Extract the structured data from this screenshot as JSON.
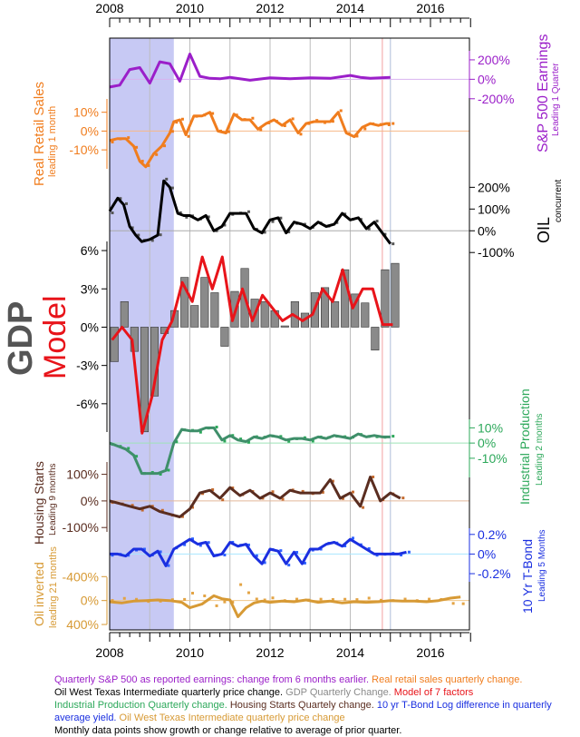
{
  "chart_data": {
    "type": "line",
    "x_range": [
      2008,
      2017
    ],
    "x_ticks": [
      "2008",
      "2010",
      "2012",
      "2014",
      "2016"
    ],
    "recession": [
      2008.0,
      2009.6
    ],
    "vlines": [
      2014.8,
      2015.0
    ],
    "colors": {
      "sp": "#9b1fc9",
      "rs": "#f07d1e",
      "oil": "#000000",
      "gdp_bar": "#8a8a8a",
      "model": "#e8141a",
      "ip": "#2ca85a",
      "hs": "#5a2d20",
      "tb": "#1a2fe0",
      "oi": "#d79a35",
      "band": "#c7c9f4"
    },
    "panels": {
      "sp": {
        "label": "S&P 500 Earnings",
        "sublabel": "Leading 1 Quarter",
        "ticks": [
          "200%",
          "0%",
          "-200%"
        ],
        "range": [
          -230,
          330
        ],
        "x": [
          2008.0,
          2008.25,
          2008.5,
          2008.75,
          2009.0,
          2009.25,
          2009.5,
          2009.75,
          2010.0,
          2010.25,
          2010.5,
          2010.75,
          2011.0,
          2011.5,
          2012.0,
          2012.5,
          2013.0,
          2013.5,
          2014.0,
          2014.25,
          2014.5,
          2014.75,
          2015.0
        ],
        "values": [
          -80,
          -60,
          100,
          120,
          -40,
          180,
          160,
          -20,
          260,
          30,
          10,
          5,
          20,
          -10,
          15,
          5,
          15,
          10,
          40,
          20,
          10,
          15,
          20
        ]
      },
      "rs": {
        "label": "Real Retail Sales",
        "sublabel": "leading 1 month",
        "ticks": [
          "10%",
          "0%",
          "-10%"
        ],
        "range": [
          -22,
          19
        ],
        "x": [
          2008.0,
          2008.2,
          2008.4,
          2008.6,
          2008.75,
          2008.9,
          2009.1,
          2009.3,
          2009.5,
          2009.6,
          2009.75,
          2009.9,
          2010.1,
          2010.3,
          2010.5,
          2010.7,
          2010.9,
          2011.1,
          2011.3,
          2011.5,
          2011.7,
          2011.9,
          2012.1,
          2012.3,
          2012.5,
          2012.7,
          2012.9,
          2013.1,
          2013.3,
          2013.5,
          2013.7,
          2013.9,
          2014.1,
          2014.3,
          2014.5,
          2014.7,
          2014.9,
          2015.0
        ],
        "values": [
          -5,
          -4,
          -4,
          -8,
          -16,
          -19,
          -12,
          -8,
          -1,
          5,
          6,
          -2,
          8,
          8,
          10,
          0,
          -1,
          9,
          6,
          6,
          1,
          4,
          6,
          3,
          6,
          -1,
          4,
          5,
          5,
          5,
          10,
          -1,
          -3,
          2,
          4,
          3,
          4,
          4
        ]
      },
      "oil": {
        "label": "OIL",
        "sublabel": "concurrent",
        "ticks": [
          "200%",
          "100%",
          "0%",
          "-100%"
        ],
        "range": [
          -120,
          260
        ],
        "x": [
          2008.0,
          2008.2,
          2008.35,
          2008.5,
          2008.65,
          2008.8,
          2009.0,
          2009.2,
          2009.35,
          2009.5,
          2009.7,
          2009.85,
          2010.0,
          2010.2,
          2010.4,
          2010.6,
          2010.8,
          2011.0,
          2011.2,
          2011.4,
          2011.6,
          2011.8,
          2012.0,
          2012.2,
          2012.4,
          2012.6,
          2012.8,
          2013.0,
          2013.2,
          2013.4,
          2013.6,
          2013.8,
          2014.0,
          2014.2,
          2014.4,
          2014.6,
          2014.8,
          2015.0
        ],
        "values": [
          90,
          150,
          120,
          20,
          -20,
          -50,
          -40,
          -20,
          230,
          200,
          80,
          70,
          70,
          50,
          70,
          0,
          20,
          80,
          80,
          80,
          10,
          -10,
          50,
          60,
          -10,
          40,
          30,
          10,
          40,
          20,
          30,
          80,
          50,
          60,
          10,
          40,
          -10,
          -60
        ]
      },
      "gdp": {
        "label_a": "GDP",
        "label_b": "Model",
        "ticks": [
          "6%",
          "3%",
          "0%",
          "-3%",
          "-6%"
        ],
        "range": [
          -8.5,
          7
        ],
        "bar_x": [
          2008.0,
          2008.25,
          2008.5,
          2008.75,
          2009.0,
          2009.25,
          2009.5,
          2009.75,
          2010.0,
          2010.25,
          2010.5,
          2010.75,
          2011.0,
          2011.25,
          2011.5,
          2011.75,
          2012.0,
          2012.25,
          2012.5,
          2012.75,
          2013.0,
          2013.25,
          2013.5,
          2013.75,
          2014.0,
          2014.25,
          2014.5,
          2014.75,
          2015.0
        ],
        "bars": [
          -2.7,
          2.0,
          -1.9,
          -8.2,
          -5.4,
          -0.5,
          1.3,
          3.9,
          1.7,
          3.9,
          2.7,
          -1.5,
          2.8,
          4.6,
          2.2,
          2.0,
          1.3,
          0.1,
          2.0,
          1.1,
          2.7,
          3.1,
          2.0,
          4.5,
          2.6,
          1.9,
          -1.8,
          4.5,
          5.0
        ],
        "model_x": [
          2008.0,
          2008.25,
          2008.5,
          2008.75,
          2009.0,
          2009.25,
          2009.5,
          2009.75,
          2010.0,
          2010.25,
          2010.5,
          2010.75,
          2011.0,
          2011.25,
          2011.5,
          2011.75,
          2012.0,
          2012.25,
          2012.5,
          2012.75,
          2013.0,
          2013.25,
          2013.5,
          2013.75,
          2014.0,
          2014.25,
          2014.5,
          2014.75,
          2015.0
        ],
        "model": [
          -1.0,
          0.0,
          -1.0,
          -8.3,
          -5.4,
          -1.0,
          0.5,
          3.5,
          2.0,
          5.5,
          3.0,
          5.5,
          0.5,
          3.0,
          0.5,
          2.5,
          1.5,
          0.5,
          1.0,
          0.5,
          1.0,
          3.0,
          2.0,
          4.5,
          1.5,
          3.0,
          3.0,
          0.2,
          0.2
        ]
      },
      "ip": {
        "label": "Industrial Production",
        "sublabel": "Leading 2 months",
        "ticks": [
          "10%",
          "0%",
          "-10%"
        ],
        "range": [
          -25,
          18
        ],
        "x": [
          2008.0,
          2008.2,
          2008.4,
          2008.6,
          2008.8,
          2009.0,
          2009.2,
          2009.4,
          2009.6,
          2009.8,
          2010.0,
          2010.2,
          2010.4,
          2010.6,
          2010.8,
          2011.0,
          2011.2,
          2011.4,
          2011.6,
          2011.8,
          2012.0,
          2012.2,
          2012.4,
          2012.6,
          2012.8,
          2013.0,
          2013.2,
          2013.4,
          2013.6,
          2013.8,
          2014.0,
          2014.2,
          2014.4,
          2014.6,
          2014.8,
          2015.0
        ],
        "values": [
          0,
          -2,
          -4,
          -8,
          -20,
          -20,
          -20,
          -18,
          0,
          9,
          8,
          8,
          10,
          10,
          2,
          5,
          2,
          1,
          4,
          3,
          5,
          4,
          2,
          3,
          3,
          2,
          4,
          3,
          5,
          4,
          3,
          6,
          4,
          5,
          4,
          4
        ]
      },
      "hs": {
        "label": "Housing Starts",
        "sublabel": "Leading 9 months",
        "ticks": [
          "100%",
          "0%",
          "-100%"
        ],
        "range": [
          -130,
          160
        ],
        "x": [
          2008.0,
          2008.25,
          2008.5,
          2008.75,
          2009.0,
          2009.25,
          2009.5,
          2009.75,
          2010.0,
          2010.25,
          2010.5,
          2010.75,
          2011.0,
          2011.25,
          2011.5,
          2011.75,
          2012.0,
          2012.25,
          2012.5,
          2012.75,
          2013.0,
          2013.25,
          2013.5,
          2013.75,
          2014.0,
          2014.25,
          2014.5,
          2014.75,
          2015.0,
          2015.25
        ],
        "values": [
          0,
          -10,
          -20,
          -30,
          -20,
          -40,
          -50,
          -60,
          -30,
          30,
          40,
          10,
          50,
          20,
          40,
          10,
          30,
          10,
          40,
          30,
          30,
          30,
          80,
          10,
          30,
          -20,
          90,
          0,
          30,
          10
        ]
      },
      "tb": {
        "label": "10 Yr T-Bond",
        "sublabel": "Leading 5 Months",
        "ticks": [
          "0.2%",
          "0%",
          "-0.2%"
        ],
        "range": [
          -0.32,
          0.3
        ],
        "x": [
          2008.0,
          2008.2,
          2008.4,
          2008.6,
          2008.8,
          2009.0,
          2009.2,
          2009.4,
          2009.6,
          2009.8,
          2010.0,
          2010.2,
          2010.4,
          2010.6,
          2010.8,
          2011.0,
          2011.2,
          2011.4,
          2011.6,
          2011.8,
          2012.0,
          2012.2,
          2012.4,
          2012.6,
          2012.8,
          2013.0,
          2013.2,
          2013.4,
          2013.6,
          2013.8,
          2014.0,
          2014.2,
          2014.4,
          2014.6,
          2014.8,
          2015.0,
          2015.2,
          2015.4
        ],
        "values": [
          0,
          0,
          -0.02,
          0.05,
          0.05,
          -0.02,
          0.03,
          -0.12,
          0.05,
          0.1,
          0.15,
          0.1,
          0.12,
          -0.02,
          0.0,
          0.12,
          0.08,
          0.1,
          -0.02,
          -0.1,
          0.05,
          0.03,
          -0.1,
          0.02,
          -0.1,
          0.05,
          0.05,
          0.1,
          0.12,
          0.08,
          0.15,
          0.1,
          0.05,
          0.0,
          0.0,
          0.0,
          0.0,
          0.02
        ]
      },
      "oi": {
        "label": "Oil inverted",
        "sublabel": "leading 21 months",
        "ticks": [
          "-400%",
          "0%",
          "400%"
        ],
        "range": [
          -460,
          450
        ],
        "x": [
          2008.0,
          2008.3,
          2008.6,
          2008.9,
          2009.2,
          2009.5,
          2009.8,
          2010.0,
          2010.3,
          2010.6,
          2010.8,
          2011.0,
          2011.2,
          2011.4,
          2011.6,
          2011.8,
          2012.0,
          2012.3,
          2012.6,
          2012.9,
          2013.2,
          2013.5,
          2013.8,
          2014.1,
          2014.4,
          2014.7,
          2015.0,
          2015.3,
          2015.6,
          2015.9,
          2016.2,
          2016.5,
          2016.75
        ],
        "values": [
          20,
          40,
          10,
          0,
          -10,
          0,
          30,
          120,
          60,
          -80,
          -30,
          -10,
          270,
          120,
          40,
          10,
          30,
          10,
          20,
          -10,
          30,
          10,
          40,
          20,
          30,
          20,
          0,
          10,
          10,
          20,
          0,
          -40,
          -60
        ]
      }
    },
    "caption": {
      "sp": "Quarterly S&P 500 as reported earnings: change from 6 months earlier.",
      "rs": " Real retail sales quarterly change.",
      "oil": "Oil West Texas Intermediate quarterly price change.",
      "gdp": " GDP Quarterly Change.",
      "model": " Model of 7 factors",
      "ip": "Industrial Production Quarterly change.",
      "hs": " Housing Starts Quartely change.",
      "tb": " 10 yr T-Bond Log difference in quarterly average yield.",
      "oi": " Oil West Texas Intermediate quarterly price change",
      "note": "Monthly data points show growth or change relative to average of prior quarter."
    }
  }
}
